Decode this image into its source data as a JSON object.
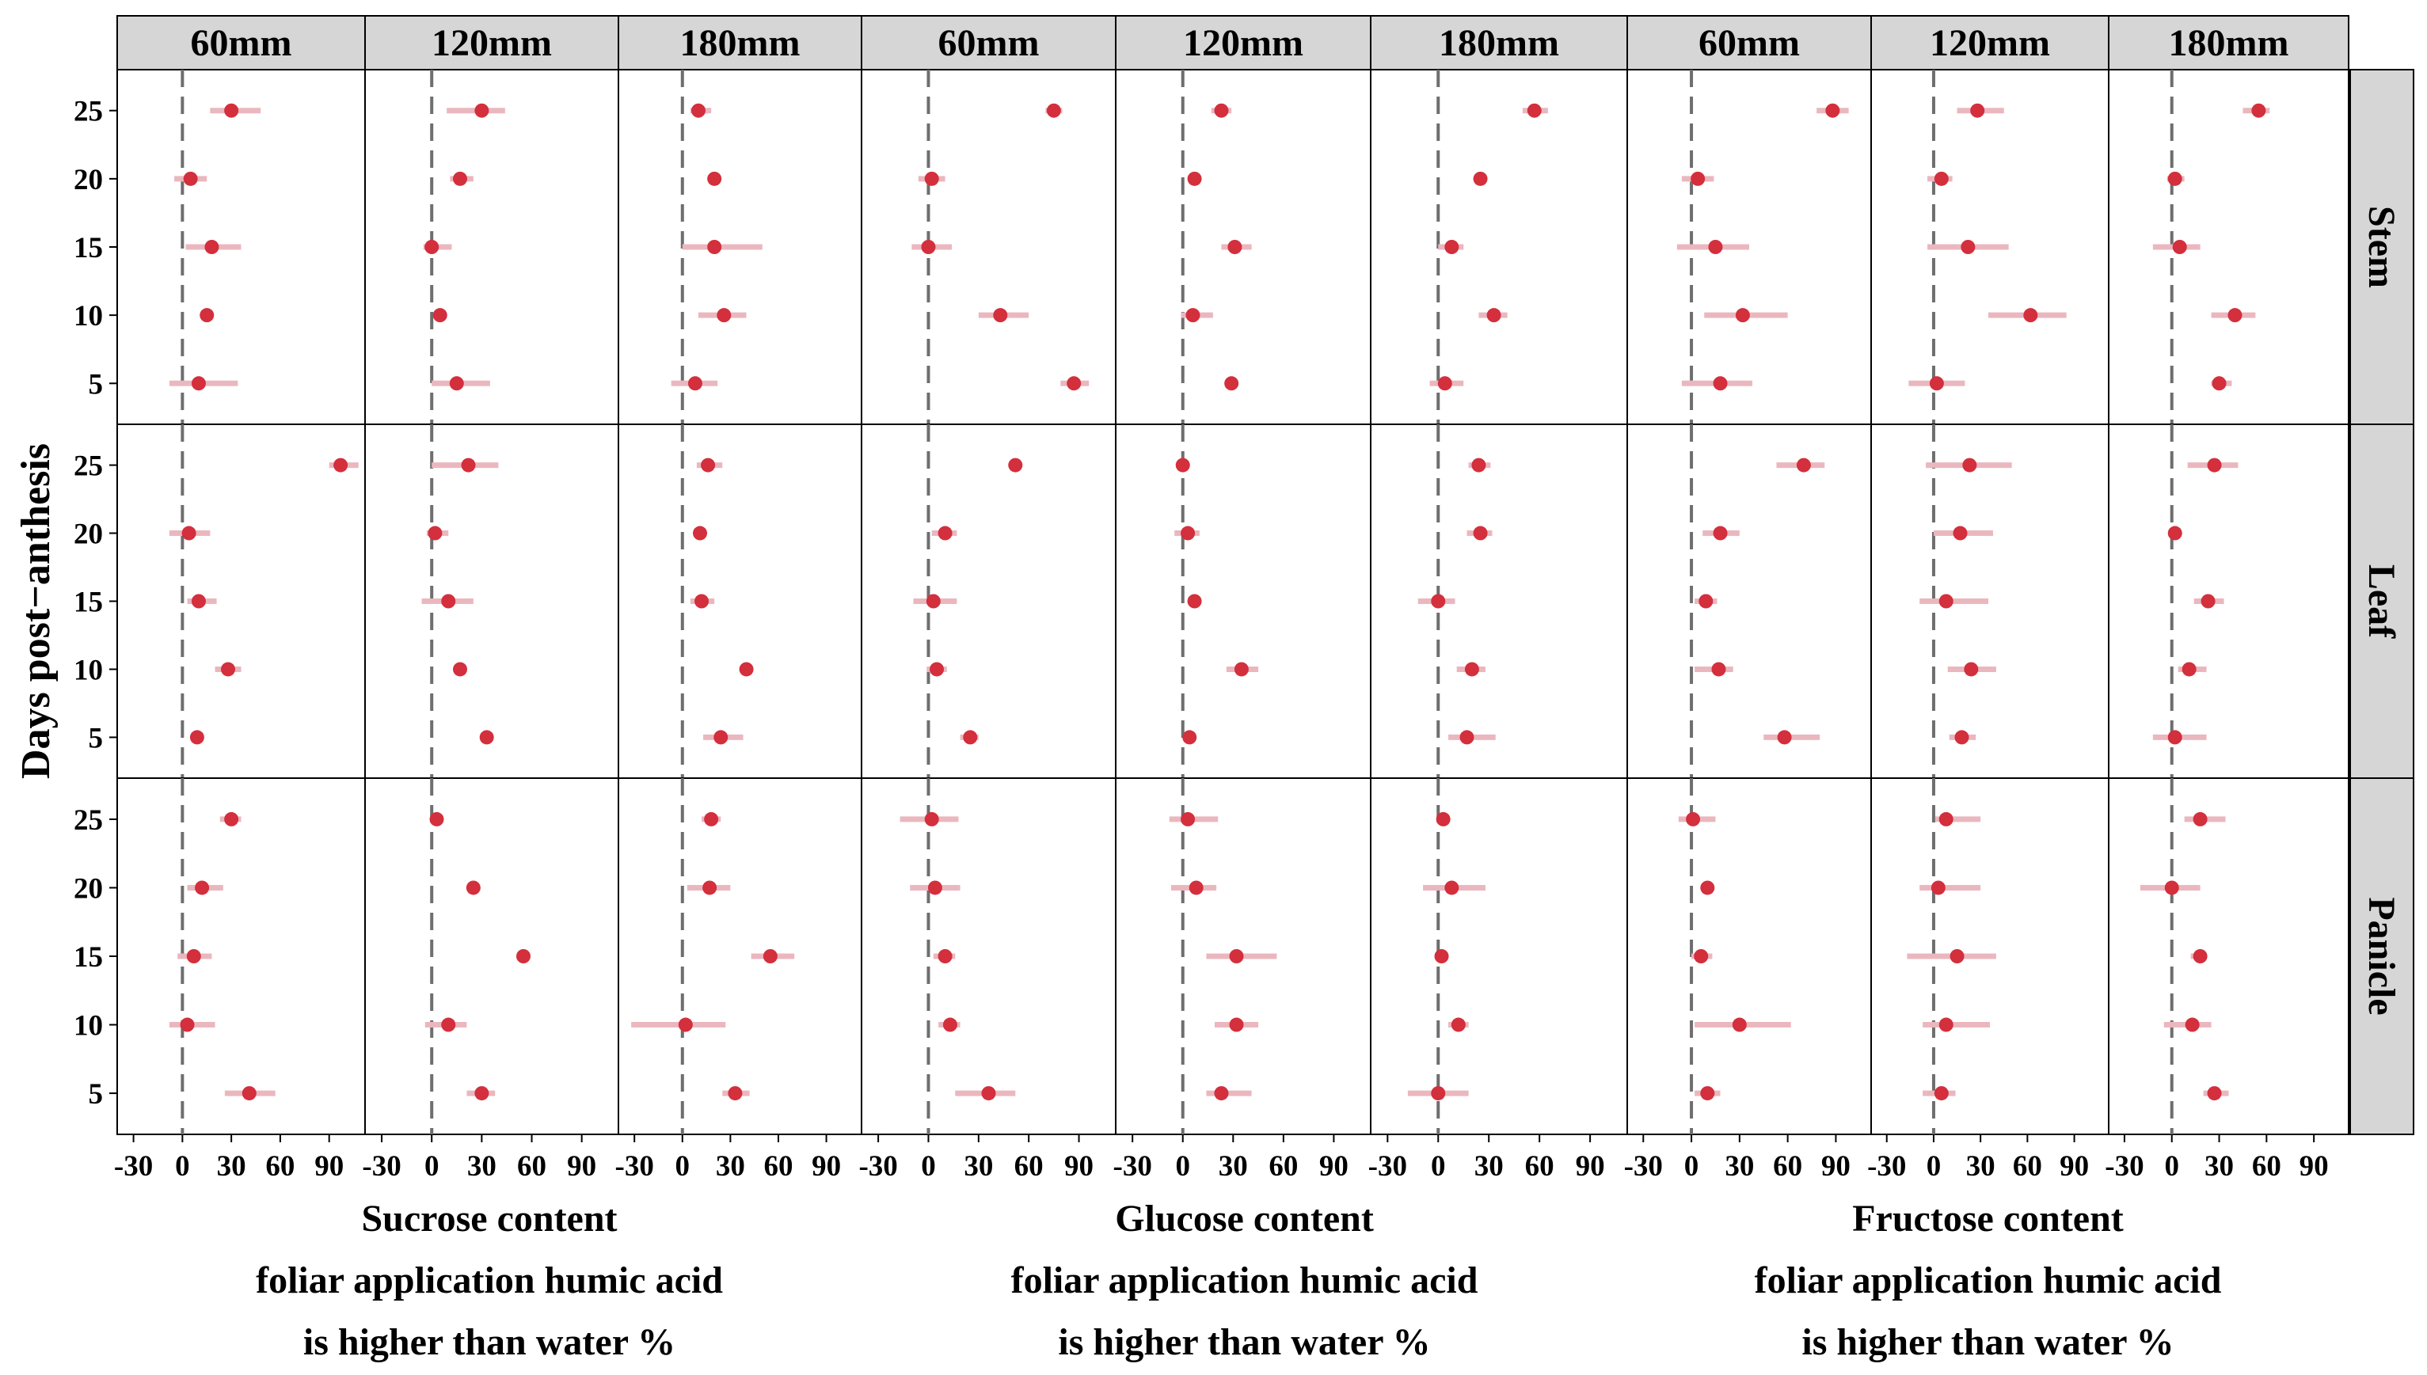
{
  "chart_data": {
    "type": "scatter",
    "style": {
      "point_color": "#d32f3c",
      "bar_color": "#ebb7bf",
      "strip_fill": "#d6d6d6",
      "zero_line_color": "#6e6e6e"
    },
    "y_axis": {
      "label": "Days post−anthesis",
      "ticks": [
        5,
        10,
        15,
        20,
        25
      ],
      "lim": [
        2,
        28
      ]
    },
    "x_axis": {
      "ticks": [
        -30,
        0,
        30,
        60,
        90
      ],
      "lim": [
        -40,
        112
      ]
    },
    "rows": [
      "Stem",
      "Leaf",
      "Panicle"
    ],
    "groups": [
      {
        "name": "Sucrose",
        "title_lines": [
          "Sucrose content",
          "foliar application humic acid",
          "is higher than water %"
        ],
        "panels": [
          {
            "label": "60mm",
            "Stem": [
              [
                25,
                30,
                17,
                48
              ],
              [
                20,
                5,
                -5,
                15
              ],
              [
                15,
                18,
                2,
                36
              ],
              [
                10,
                15,
                15,
                15
              ],
              [
                5,
                10,
                -8,
                34
              ]
            ],
            "Leaf": [
              [
                25,
                97,
                90,
                108
              ],
              [
                20,
                4,
                -8,
                17
              ],
              [
                15,
                10,
                3,
                21
              ],
              [
                10,
                28,
                20,
                36
              ],
              [
                5,
                9,
                9,
                9
              ]
            ],
            "Panicle": [
              [
                25,
                30,
                23,
                36
              ],
              [
                20,
                12,
                3,
                25
              ],
              [
                15,
                7,
                -3,
                18
              ],
              [
                10,
                3,
                -8,
                20
              ],
              [
                5,
                41,
                26,
                57
              ]
            ]
          },
          {
            "label": "120mm",
            "Stem": [
              [
                25,
                30,
                9,
                44
              ],
              [
                20,
                17,
                11,
                25
              ],
              [
                15,
                0,
                -5,
                12
              ],
              [
                10,
                5,
                5,
                5
              ],
              [
                5,
                15,
                0,
                35
              ]
            ],
            "Leaf": [
              [
                25,
                22,
                0,
                40
              ],
              [
                20,
                2,
                -3,
                10
              ],
              [
                15,
                10,
                -6,
                25
              ],
              [
                10,
                17,
                17,
                17
              ],
              [
                5,
                33,
                33,
                33
              ]
            ],
            "Panicle": [
              [
                25,
                3,
                3,
                3
              ],
              [
                20,
                25,
                25,
                25
              ],
              [
                15,
                55,
                55,
                55
              ],
              [
                10,
                10,
                -4,
                21
              ],
              [
                5,
                30,
                21,
                38
              ]
            ]
          },
          {
            "label": "180mm",
            "Stem": [
              [
                25,
                10,
                5,
                18
              ],
              [
                20,
                20,
                20,
                20
              ],
              [
                15,
                20,
                0,
                50
              ],
              [
                10,
                26,
                10,
                40
              ],
              [
                5,
                8,
                -7,
                22
              ]
            ],
            "Leaf": [
              [
                25,
                16,
                9,
                25
              ],
              [
                20,
                11,
                11,
                11
              ],
              [
                15,
                12,
                5,
                20
              ],
              [
                10,
                40,
                40,
                40
              ],
              [
                5,
                24,
                13,
                38
              ]
            ],
            "Panicle": [
              [
                25,
                18,
                12,
                24
              ],
              [
                20,
                17,
                3,
                30
              ],
              [
                15,
                55,
                43,
                70
              ],
              [
                10,
                2,
                -32,
                27
              ],
              [
                5,
                33,
                25,
                42
              ]
            ]
          }
        ]
      },
      {
        "name": "Glucose",
        "title_lines": [
          "Glucose content",
          "foliar application humic acid",
          "is higher than water %"
        ],
        "panels": [
          {
            "label": "60mm",
            "Stem": [
              [
                25,
                75,
                70,
                80
              ],
              [
                20,
                2,
                -6,
                10
              ],
              [
                15,
                0,
                -10,
                14
              ],
              [
                10,
                43,
                30,
                60
              ],
              [
                5,
                87,
                79,
                96
              ]
            ],
            "Leaf": [
              [
                25,
                52,
                52,
                52
              ],
              [
                20,
                10,
                2,
                17
              ],
              [
                15,
                3,
                -9,
                17
              ],
              [
                10,
                5,
                -1,
                11
              ],
              [
                5,
                25,
                19,
                30
              ]
            ],
            "Panicle": [
              [
                25,
                2,
                -17,
                18
              ],
              [
                20,
                4,
                -11,
                19
              ],
              [
                15,
                10,
                3,
                16
              ],
              [
                10,
                13,
                6,
                19
              ],
              [
                5,
                36,
                16,
                52
              ]
            ]
          },
          {
            "label": "120mm",
            "Stem": [
              [
                25,
                23,
                17,
                29
              ],
              [
                20,
                7,
                7,
                7
              ],
              [
                15,
                31,
                23,
                41
              ],
              [
                10,
                6,
                -1,
                18
              ],
              [
                5,
                29,
                29,
                29
              ]
            ],
            "Leaf": [
              [
                25,
                0,
                0,
                0
              ],
              [
                20,
                3,
                -5,
                10
              ],
              [
                15,
                7,
                4,
                10
              ],
              [
                10,
                35,
                26,
                45
              ],
              [
                5,
                4,
                4,
                4
              ]
            ],
            "Panicle": [
              [
                25,
                3,
                -8,
                21
              ],
              [
                20,
                8,
                -7,
                20
              ],
              [
                15,
                32,
                14,
                56
              ],
              [
                10,
                32,
                19,
                45
              ],
              [
                5,
                23,
                14,
                41
              ]
            ]
          },
          {
            "label": "180mm",
            "Stem": [
              [
                25,
                57,
                50,
                65
              ],
              [
                20,
                25,
                25,
                25
              ],
              [
                15,
                8,
                0,
                15
              ],
              [
                10,
                33,
                24,
                41
              ],
              [
                5,
                4,
                -5,
                15
              ]
            ],
            "Leaf": [
              [
                25,
                24,
                18,
                31
              ],
              [
                20,
                25,
                17,
                32
              ],
              [
                15,
                0,
                -12,
                10
              ],
              [
                10,
                20,
                11,
                28
              ],
              [
                5,
                17,
                6,
                34
              ]
            ],
            "Panicle": [
              [
                25,
                3,
                3,
                3
              ],
              [
                20,
                8,
                -9,
                28
              ],
              [
                15,
                2,
                2,
                2
              ],
              [
                10,
                12,
                6,
                18
              ],
              [
                5,
                0,
                -18,
                18
              ]
            ]
          }
        ]
      },
      {
        "name": "Fructose",
        "title_lines": [
          "Fructose content",
          "foliar application humic acid",
          "is higher than water  %"
        ],
        "panels": [
          {
            "label": "60mm",
            "Stem": [
              [
                25,
                88,
                78,
                98
              ],
              [
                20,
                4,
                -6,
                14
              ],
              [
                15,
                15,
                -9,
                36
              ],
              [
                10,
                32,
                8,
                60
              ],
              [
                5,
                18,
                -6,
                38
              ]
            ],
            "Leaf": [
              [
                25,
                70,
                53,
                83
              ],
              [
                20,
                18,
                7,
                30
              ],
              [
                15,
                9,
                2,
                16
              ],
              [
                10,
                17,
                2,
                26
              ],
              [
                5,
                58,
                45,
                80
              ]
            ],
            "Panicle": [
              [
                25,
                1,
                -8,
                15
              ],
              [
                20,
                10,
                10,
                10
              ],
              [
                15,
                6,
                0,
                13
              ],
              [
                10,
                30,
                2,
                62
              ],
              [
                5,
                10,
                2,
                18
              ]
            ]
          },
          {
            "label": "120mm",
            "Stem": [
              [
                25,
                28,
                15,
                45
              ],
              [
                20,
                5,
                -4,
                12
              ],
              [
                15,
                22,
                -4,
                48
              ],
              [
                10,
                62,
                35,
                85
              ],
              [
                5,
                2,
                -16,
                20
              ]
            ],
            "Leaf": [
              [
                25,
                23,
                -5,
                50
              ],
              [
                20,
                17,
                0,
                38
              ],
              [
                15,
                8,
                -9,
                35
              ],
              [
                10,
                24,
                9,
                40
              ],
              [
                5,
                18,
                10,
                27
              ]
            ],
            "Panicle": [
              [
                25,
                8,
                1,
                30
              ],
              [
                20,
                3,
                -9,
                30
              ],
              [
                15,
                15,
                -17,
                40
              ],
              [
                10,
                8,
                -7,
                36
              ],
              [
                5,
                5,
                -7,
                14
              ]
            ]
          },
          {
            "label": "180mm",
            "Stem": [
              [
                25,
                55,
                45,
                62
              ],
              [
                20,
                2,
                -3,
                8
              ],
              [
                15,
                5,
                -12,
                18
              ],
              [
                10,
                40,
                25,
                53
              ],
              [
                5,
                30,
                25,
                38
              ]
            ],
            "Leaf": [
              [
                25,
                27,
                10,
                42
              ],
              [
                20,
                2,
                2,
                2
              ],
              [
                15,
                23,
                14,
                33
              ],
              [
                10,
                11,
                4,
                22
              ],
              [
                5,
                2,
                -12,
                22
              ]
            ],
            "Panicle": [
              [
                25,
                18,
                8,
                34
              ],
              [
                20,
                0,
                -20,
                18
              ],
              [
                15,
                18,
                12,
                22
              ],
              [
                10,
                13,
                -5,
                25
              ],
              [
                5,
                27,
                20,
                36
              ]
            ]
          }
        ]
      }
    ]
  }
}
